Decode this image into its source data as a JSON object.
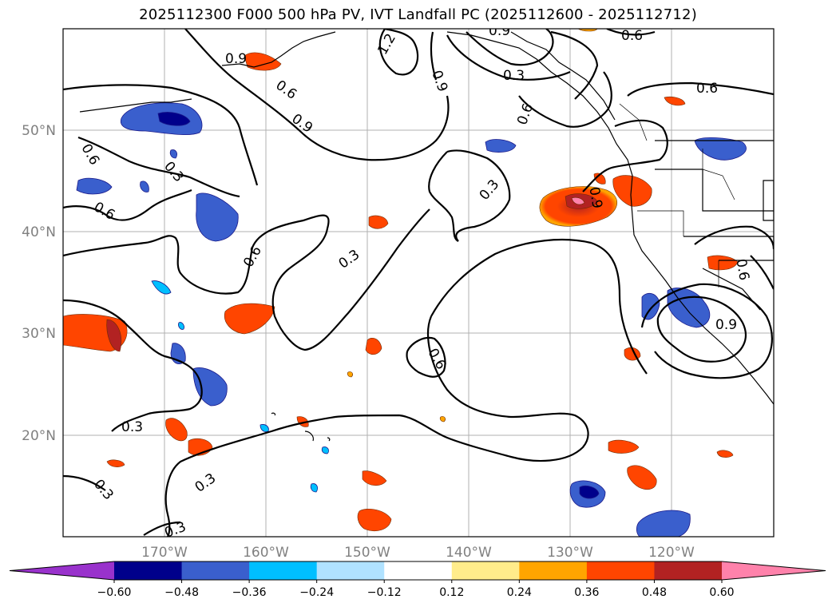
{
  "title": "2025112300 F000 500 hPa PV, IVT Landfall PC (2025112600 - 2025112712)",
  "map": {
    "lon_ticks": [
      "170°W",
      "160°W",
      "150°W",
      "140°W",
      "130°W",
      "120°W"
    ],
    "lat_ticks": [
      "50°N",
      "40°N",
      "30°N",
      "20°N"
    ],
    "contour_labels": [
      "0.9",
      "1.2",
      "0.9",
      "0.6",
      "0.6",
      "0.9",
      "0.6",
      "0.3",
      "0.9",
      "0.6",
      "0.6",
      "0.3",
      "0.6",
      "0.9",
      "0.3",
      "0.6",
      "0.6",
      "0.3",
      "0.6",
      "0.9",
      "0.3",
      "0.3",
      "0.3",
      "0.3"
    ]
  },
  "colorbar": {
    "ticks": [
      "−0.60",
      "−0.48",
      "−0.36",
      "−0.24",
      "−0.12",
      "0.12",
      "0.24",
      "0.36",
      "0.48",
      "0.60"
    ],
    "colors": [
      "#9932CC",
      "#00008B",
      "#3A5FCD",
      "#00BFFF",
      "#B0E2FF",
      "#FFFFFF",
      "#FFEC8B",
      "#FFA500",
      "#FF4500",
      "#B22222",
      "#FF82AB"
    ]
  }
}
